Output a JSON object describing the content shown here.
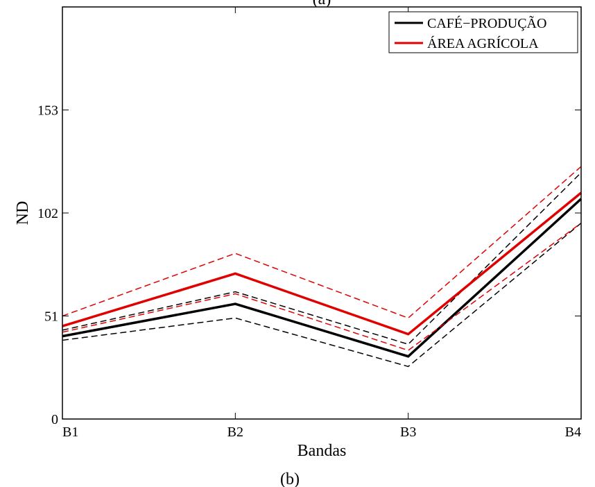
{
  "chart_data": {
    "type": "line",
    "title": "(a)",
    "caption": "(b)",
    "xlabel": "Bandas",
    "ylabel": "ND",
    "categories": [
      "B1",
      "B2",
      "B3",
      "B4"
    ],
    "ylim": [
      0,
      204
    ],
    "yticks": [
      0,
      51,
      102,
      153
    ],
    "grid": false,
    "legend_position": "top-right",
    "legend_entries": [
      "CAFÉ−PRODUÇÃO",
      "ÁREA AGRÍCOLA"
    ],
    "series": [
      {
        "name": "CAFÉ−PRODUÇÃO",
        "style": "solid",
        "color": "#000000",
        "values": [
          41,
          57,
          31,
          109
        ]
      },
      {
        "style": "dashed",
        "color": "#000000",
        "values": [
          44,
          63,
          37,
          122
        ]
      },
      {
        "style": "dashed",
        "color": "#000000",
        "values": [
          39,
          50,
          26,
          97
        ]
      },
      {
        "name": "ÁREA AGRÍCOLA",
        "style": "solid",
        "color": "#e00000",
        "values": [
          46,
          72,
          42,
          112
        ]
      },
      {
        "style": "dashed",
        "color": "#e00000",
        "values": [
          51,
          82,
          50,
          125
        ]
      },
      {
        "style": "dashed",
        "color": "#e00000",
        "values": [
          43,
          62,
          34,
          97
        ]
      }
    ]
  }
}
